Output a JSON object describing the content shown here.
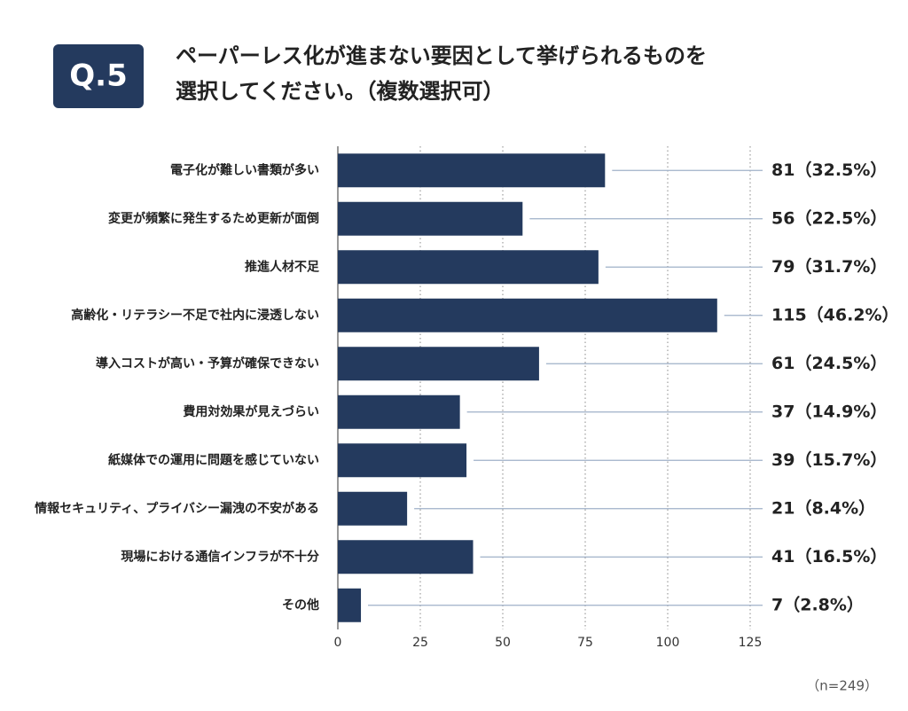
{
  "chart_data": {
    "type": "bar",
    "orientation": "horizontal",
    "question_label": "Q.5",
    "title": [
      "ペーパーレス化が進まない要因として挙げられるものを",
      "選択してください。（複数選択可）"
    ],
    "categories": [
      "電子化が難しい書類が多い",
      "変更が頻繁に発生するため更新が面倒",
      "推進人材不足",
      "高齢化・リテラシー不足で社内に浸透しない",
      "導入コストが高い・予算が確保できない",
      "費用対効果が見えづらい",
      "紙媒体での運用に問題を感じていない",
      "情報セキュリティ、プライバシー漏洩の不安がある",
      "現場における通信インフラが不十分",
      "その他"
    ],
    "values": [
      81,
      56,
      79,
      115,
      61,
      37,
      39,
      21,
      41,
      7
    ],
    "value_labels": [
      "81（32.5%）",
      "56（22.5%）",
      "79（31.7%）",
      "115（46.2%）",
      "61（24.5%）",
      "37（14.9%）",
      "39（15.7%）",
      "21（8.4%）",
      "41（16.5%）",
      "7（2.8%）"
    ],
    "color": "#243a5e",
    "xlim": [
      0,
      125
    ],
    "xticks": [
      0,
      25,
      50,
      75,
      100,
      125
    ],
    "grid": true,
    "note": "（n=249）"
  }
}
